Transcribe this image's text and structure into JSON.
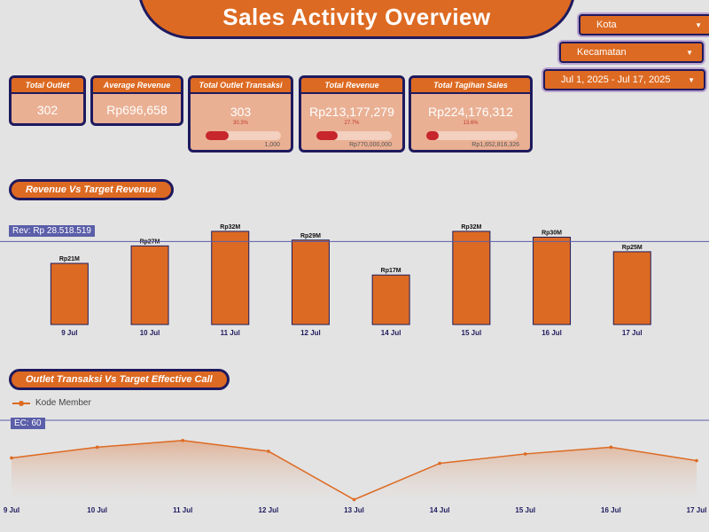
{
  "title": "Sales Activity Overview",
  "filters": {
    "kota": "Kota",
    "kecamatan": "Kecamatan",
    "date_range": "Jul 1, 2025 - Jul 17, 2025"
  },
  "cards": {
    "total_outlet": {
      "label": "Total Outlet",
      "value": "302"
    },
    "average_revenue": {
      "label": "Average Revenue",
      "value": "Rp696,658"
    },
    "total_outlet_transaksi": {
      "label": "Total Outlet Transaksi",
      "value": "303",
      "pct": "30.3%",
      "progress": 0.303,
      "target": "1,000"
    },
    "total_revenue": {
      "label": "Total Revenue",
      "value": "Rp213,177,279",
      "pct": "27.7%",
      "progress": 0.277,
      "target": "Rp770,000,000"
    },
    "total_tagihan_sales": {
      "label": "Total Tagihan Sales",
      "value": "Rp224,176,312",
      "pct": "13.6%",
      "progress": 0.136,
      "target": "Rp1,652,816,326"
    }
  },
  "section_revenue": "Revenue Vs Target Revenue",
  "section_outlet": "Outlet Transaksi Vs Target Effective Call",
  "colors": {
    "accent": "#dd6a22",
    "border": "#1e1a5e",
    "ref_line": "#5b5ea8",
    "progress": "#c6262c"
  },
  "chart_data": [
    {
      "type": "bar",
      "categories": [
        "9 Jul",
        "10 Jul",
        "11 Jul",
        "12 Jul",
        "14 Jul",
        "15 Jul",
        "16 Jul",
        "17 Jul"
      ],
      "values": [
        21,
        27,
        32,
        29,
        17,
        32,
        30,
        25
      ],
      "value_labels": [
        "Rp21M",
        "Rp27M",
        "Rp32M",
        "Rp29M",
        "Rp17M",
        "Rp32M",
        "Rp30M",
        "Rp25M"
      ],
      "unit": "million Rp",
      "reference_line": {
        "label": "Rev: Rp 28.518.519",
        "value": 28.518519
      },
      "ylim": [
        0,
        33.5
      ],
      "grid": false
    },
    {
      "type": "area",
      "categories": [
        "9 Jul",
        "10 Jul",
        "11 Jul",
        "12 Jul",
        "13 Jul",
        "14 Jul",
        "15 Jul",
        "16 Jul",
        "17 Jul"
      ],
      "series": [
        {
          "name": "Kode Member",
          "values": [
            32,
            40,
            45,
            37,
            1,
            28,
            35,
            40,
            30
          ]
        }
      ],
      "reference_line": {
        "label": "EC: 60",
        "value": 60
      },
      "ylim": [
        0,
        62
      ],
      "legend": "top-left",
      "grid": false
    }
  ]
}
